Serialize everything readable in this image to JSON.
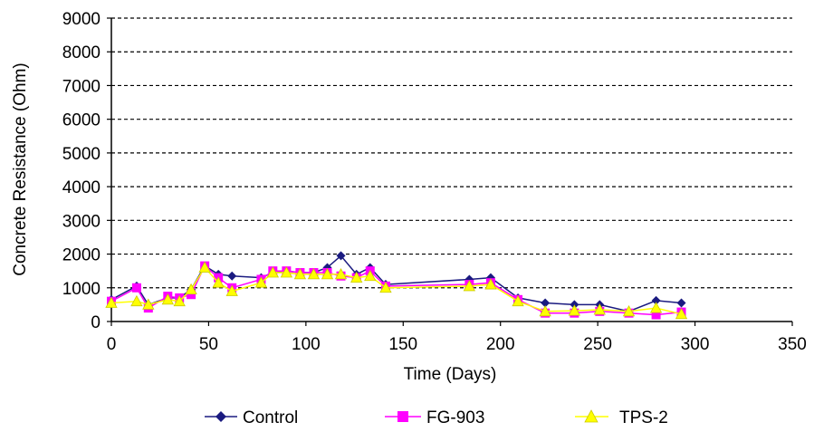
{
  "chart_data": {
    "type": "line",
    "title": "",
    "xlabel": "Time (Days)",
    "ylabel": "Concrete Resistance (Ohm)",
    "xlim": [
      0,
      350
    ],
    "ylim": [
      0,
      9000
    ],
    "x_ticks": [
      0,
      50,
      100,
      150,
      200,
      250,
      300,
      350
    ],
    "y_ticks": [
      0,
      1000,
      2000,
      3000,
      4000,
      5000,
      6000,
      7000,
      8000,
      9000
    ],
    "grid": "horizontal dashed",
    "legend_position": "bottom",
    "series": [
      {
        "name": "Control",
        "color": "#1a1a80",
        "marker": "diamond",
        "x": [
          0,
          13,
          19,
          29,
          35,
          41,
          48,
          55,
          62,
          77,
          83,
          90,
          97,
          104,
          111,
          118,
          126,
          133,
          141,
          184,
          195,
          209,
          223,
          238,
          251,
          266,
          280,
          293
        ],
        "y": [
          650,
          1050,
          500,
          700,
          700,
          950,
          1650,
          1400,
          1350,
          1300,
          1450,
          1500,
          1450,
          1450,
          1600,
          1950,
          1400,
          1600,
          1100,
          1250,
          1300,
          700,
          550,
          500,
          500,
          300,
          620,
          550
        ]
      },
      {
        "name": "FG-903",
        "color": "#ff00ff",
        "marker": "square",
        "x": [
          0,
          13,
          19,
          29,
          35,
          41,
          48,
          55,
          62,
          77,
          83,
          90,
          97,
          104,
          111,
          118,
          126,
          133,
          141,
          184,
          195,
          209,
          223,
          238,
          251,
          266,
          280,
          293
        ],
        "y": [
          600,
          1000,
          400,
          750,
          700,
          800,
          1650,
          1300,
          1000,
          1250,
          1500,
          1500,
          1450,
          1450,
          1450,
          1350,
          1300,
          1500,
          1050,
          1100,
          1150,
          650,
          250,
          250,
          300,
          250,
          200,
          280
        ]
      },
      {
        "name": "TPS-2",
        "color": "#ffff00",
        "marker": "triangle",
        "x": [
          0,
          13,
          19,
          29,
          35,
          41,
          48,
          55,
          62,
          77,
          83,
          90,
          97,
          104,
          111,
          118,
          126,
          133,
          141,
          184,
          195,
          209,
          223,
          238,
          251,
          266,
          280,
          293
        ],
        "y": [
          550,
          600,
          500,
          650,
          600,
          950,
          1600,
          1150,
          900,
          1150,
          1450,
          1450,
          1400,
          1400,
          1400,
          1400,
          1300,
          1350,
          1000,
          1050,
          1100,
          600,
          300,
          320,
          350,
          300,
          400,
          220
        ]
      }
    ]
  }
}
